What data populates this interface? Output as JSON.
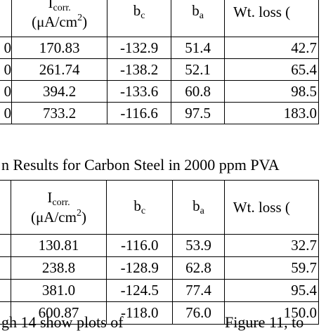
{
  "table_top": {
    "headers": {
      "icorr": "I",
      "icorr_sub": "corr.",
      "icorr_unit": "(μA/cm",
      "icorr_unit_sup": "2",
      "icorr_unit_end": ")",
      "bc": "b",
      "bc_sub": "c",
      "ba": "b",
      "ba_sub": "a",
      "wt_loss": "Wt. loss ("
    },
    "rows": [
      {
        "edge": "0",
        "icorr": "170.83",
        "bc": "-132.9",
        "ba": "51.4",
        "wt": "42.7"
      },
      {
        "edge": "0",
        "icorr": "261.74",
        "bc": "-138.2",
        "ba": "52.1",
        "wt": "65.4"
      },
      {
        "edge": "0",
        "icorr": "394.2",
        "bc": "-133.6",
        "ba": "60.8",
        "wt": "98.5"
      },
      {
        "edge": "0",
        "icorr": "733.2",
        "bc": "-116.6",
        "ba": "97.5",
        "wt": "183.0"
      }
    ]
  },
  "caption": "n Results for Carbon Steel in 2000 ppm PVA",
  "table_bottom": {
    "headers": {
      "icorr": "I",
      "icorr_sub": "corr.",
      "icorr_unit": "(μA/cm",
      "icorr_unit_sup": "2",
      "icorr_unit_end": ")",
      "bc": "b",
      "bc_sub": "c",
      "ba": "b",
      "ba_sub": "a",
      "wt_loss": "Wt. loss ("
    },
    "rows": [
      {
        "icorr": "130.81",
        "bc": "-116.0",
        "ba": "53.9",
        "wt": "32.7"
      },
      {
        "icorr": "238.8",
        "bc": "-128.9",
        "ba": "62.8",
        "wt": "59.7"
      },
      {
        "icorr": "381.0",
        "bc": "-124.5",
        "ba": "77.4",
        "wt": "95.4"
      },
      {
        "icorr": "600.87",
        "bc": "-118.0",
        "ba": "76.0",
        "wt": "150.0"
      }
    ]
  },
  "body_text": {
    "left": "gh 14 show plots of",
    "right": "Figure 11, to"
  }
}
